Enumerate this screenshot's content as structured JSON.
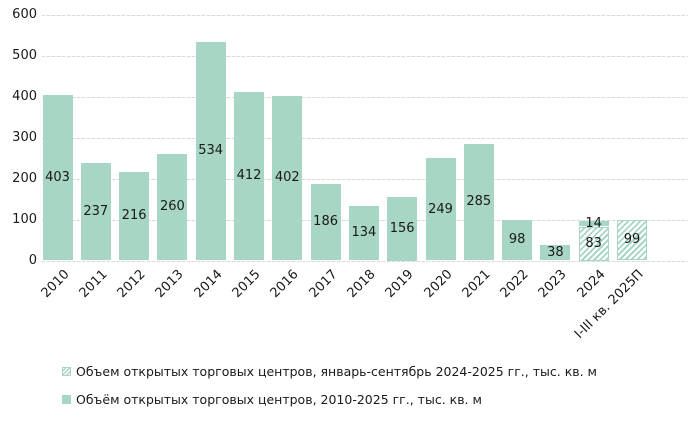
{
  "chart_data": {
    "type": "bar",
    "title": "",
    "xlabel": "",
    "ylabel": "",
    "ylim": [
      0,
      600
    ],
    "y_ticks": [
      0,
      100,
      200,
      300,
      400,
      500,
      600
    ],
    "grid": "horizontal-dashed",
    "legend_position": "bottom-left",
    "colors": {
      "bar_green": "#a7d6c4",
      "hatch_background": "#ffffff",
      "gridline": "#d9d9d9",
      "text": "#1a1a1a"
    },
    "categories": [
      "2010",
      "2011",
      "2012",
      "2013",
      "2014",
      "2015",
      "2016",
      "2017",
      "2018",
      "2019",
      "2020",
      "2021",
      "2022",
      "2023",
      "2024",
      "I-III кв. 2025П"
    ],
    "bars": [
      {
        "category": "2010",
        "segments": [
          {
            "value": 403,
            "style": "solid"
          }
        ]
      },
      {
        "category": "2011",
        "segments": [
          {
            "value": 237,
            "style": "solid"
          }
        ]
      },
      {
        "category": "2012",
        "segments": [
          {
            "value": 216,
            "style": "solid"
          }
        ]
      },
      {
        "category": "2013",
        "segments": [
          {
            "value": 260,
            "style": "solid"
          }
        ]
      },
      {
        "category": "2014",
        "segments": [
          {
            "value": 534,
            "style": "solid"
          }
        ]
      },
      {
        "category": "2015",
        "segments": [
          {
            "value": 412,
            "style": "solid"
          }
        ]
      },
      {
        "category": "2016",
        "segments": [
          {
            "value": 402,
            "style": "solid"
          }
        ]
      },
      {
        "category": "2017",
        "segments": [
          {
            "value": 186,
            "style": "solid"
          }
        ]
      },
      {
        "category": "2018",
        "segments": [
          {
            "value": 134,
            "style": "solid"
          }
        ]
      },
      {
        "category": "2019",
        "segments": [
          {
            "value": 156,
            "style": "solid"
          }
        ]
      },
      {
        "category": "2020",
        "segments": [
          {
            "value": 249,
            "style": "solid"
          }
        ]
      },
      {
        "category": "2021",
        "segments": [
          {
            "value": 285,
            "style": "solid"
          }
        ]
      },
      {
        "category": "2022",
        "segments": [
          {
            "value": 98,
            "style": "solid"
          }
        ]
      },
      {
        "category": "2023",
        "segments": [
          {
            "value": 38,
            "style": "solid"
          }
        ]
      },
      {
        "category": "2024",
        "segments": [
          {
            "value": 83,
            "style": "hatched"
          },
          {
            "value": 14,
            "style": "solid"
          }
        ]
      },
      {
        "category": "I-III кв. 2025П",
        "segments": [
          {
            "value": 99,
            "style": "hatched"
          }
        ]
      }
    ],
    "legend": [
      {
        "label": "Объем открытых торговых центров, январь-сентябрь 2024-2025 гг., тыс. кв. м",
        "style": "hatched"
      },
      {
        "label": "Объём открытых торговых центров, 2010-2025 гг., тыс. кв. м",
        "style": "solid"
      }
    ]
  }
}
